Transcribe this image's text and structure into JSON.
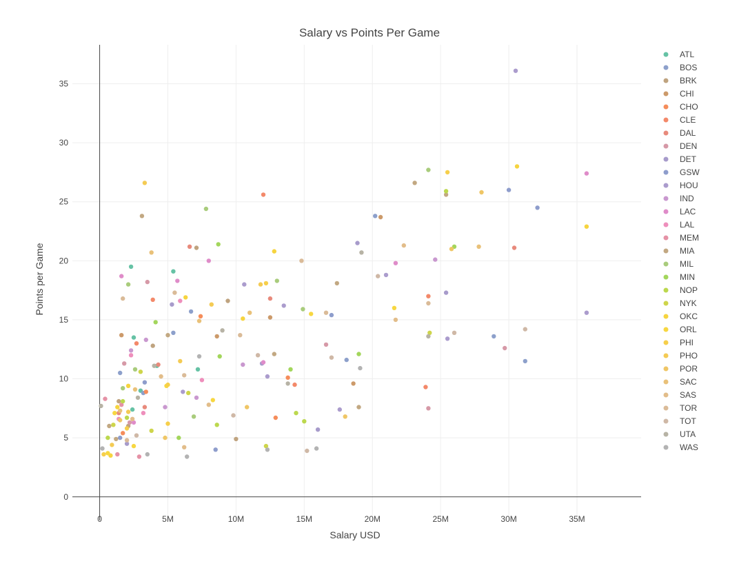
{
  "chart_data": {
    "type": "scatter",
    "title": "Salary vs Points Per Game",
    "xlabel": "Salary USD",
    "ylabel": "Points per Game",
    "xlim": [
      -2000000,
      39700000
    ],
    "ylim": [
      -2,
      38.3
    ],
    "x_ticks": [
      {
        "value": 0,
        "label": "0"
      },
      {
        "value": 5000000,
        "label": "5M"
      },
      {
        "value": 10000000,
        "label": "10M"
      },
      {
        "value": 15000000,
        "label": "15M"
      },
      {
        "value": 20000000,
        "label": "20M"
      },
      {
        "value": 25000000,
        "label": "25M"
      },
      {
        "value": 30000000,
        "label": "30M"
      },
      {
        "value": 35000000,
        "label": "35M"
      }
    ],
    "y_ticks": [
      {
        "value": 0,
        "label": "0"
      },
      {
        "value": 5,
        "label": "5"
      },
      {
        "value": 10,
        "label": "10"
      },
      {
        "value": 15,
        "label": "15"
      },
      {
        "value": 20,
        "label": "20"
      },
      {
        "value": 25,
        "label": "25"
      },
      {
        "value": 30,
        "label": "30"
      },
      {
        "value": 35,
        "label": "35"
      }
    ],
    "grid": true,
    "legend_position": "right",
    "series": [
      {
        "name": "ATL",
        "color": "#66c2a5",
        "points": [
          [
            2300000,
            19.5
          ],
          [
            5400000,
            19.1
          ],
          [
            4200000,
            11.1
          ],
          [
            7200000,
            10.8
          ],
          [
            2500000,
            13.5
          ],
          [
            2400000,
            7.4
          ],
          [
            3000000,
            9.0
          ]
        ]
      },
      {
        "name": "BOS",
        "color": "#8da0cb",
        "points": [
          [
            18100000,
            11.6
          ],
          [
            20200000,
            23.8
          ],
          [
            28900000,
            13.6
          ],
          [
            31200000,
            11.5
          ],
          [
            5400000,
            13.9
          ],
          [
            6700000,
            15.7
          ],
          [
            1500000,
            10.5
          ],
          [
            3200000,
            8.8
          ]
        ]
      },
      {
        "name": "BRK",
        "color": "#bfa37f",
        "points": [
          [
            7100000,
            21.1
          ],
          [
            2100000,
            6.0
          ],
          [
            9400000,
            16.6
          ],
          [
            1400000,
            8.1
          ],
          [
            3900000,
            12.8
          ],
          [
            10000000,
            4.9
          ]
        ]
      },
      {
        "name": "CHI",
        "color": "#cc9a6a",
        "points": [
          [
            20600000,
            23.7
          ],
          [
            18600000,
            9.6
          ],
          [
            12500000,
            15.2
          ],
          [
            1600000,
            13.7
          ],
          [
            8600000,
            13.6
          ]
        ]
      },
      {
        "name": "CHO",
        "color": "#f58d5b",
        "points": [
          [
            13800000,
            10.1
          ],
          [
            12900000,
            6.7
          ],
          [
            1700000,
            5.4
          ],
          [
            7400000,
            15.3
          ],
          [
            3400000,
            8.9
          ]
        ]
      },
      {
        "name": "CLE",
        "color": "#f3896a",
        "points": [
          [
            12000000,
            25.6
          ],
          [
            24100000,
            17.0
          ],
          [
            3900000,
            16.7
          ],
          [
            14300000,
            9.5
          ],
          [
            2700000,
            13.0
          ],
          [
            23900000,
            9.3
          ]
        ]
      },
      {
        "name": "DAL",
        "color": "#e88a7c",
        "points": [
          [
            6600000,
            21.2
          ],
          [
            30400000,
            21.1
          ],
          [
            12500000,
            16.8
          ],
          [
            1400000,
            7.1
          ],
          [
            3300000,
            7.6
          ],
          [
            4300000,
            11.2
          ]
        ]
      },
      {
        "name": "DEN",
        "color": "#d699a7",
        "points": [
          [
            3500000,
            18.2
          ],
          [
            24100000,
            7.5
          ],
          [
            29700000,
            12.6
          ],
          [
            16600000,
            12.9
          ],
          [
            1800000,
            11.3
          ],
          [
            2200000,
            6.3
          ]
        ]
      },
      {
        "name": "DET",
        "color": "#a79bcb",
        "points": [
          [
            18900000,
            21.5
          ],
          [
            25400000,
            17.3
          ],
          [
            11900000,
            11.3
          ],
          [
            16000000,
            5.7
          ],
          [
            5300000,
            16.3
          ],
          [
            2000000,
            4.5
          ]
        ]
      },
      {
        "name": "GSW",
        "color": "#8e9dcc",
        "points": [
          [
            32100000,
            24.5
          ],
          [
            30000000,
            26.0
          ],
          [
            17000000,
            15.4
          ],
          [
            8500000,
            4.0
          ],
          [
            3300000,
            9.7
          ],
          [
            1500000,
            5.0
          ]
        ]
      },
      {
        "name": "HOU",
        "color": "#ab9ccd",
        "points": [
          [
            30500000,
            36.1
          ],
          [
            35700000,
            15.6
          ],
          [
            21000000,
            18.8
          ],
          [
            25500000,
            13.4
          ],
          [
            13500000,
            16.2
          ],
          [
            10600000,
            18.0
          ],
          [
            12300000,
            10.2
          ],
          [
            6100000,
            8.9
          ],
          [
            17600000,
            7.4
          ]
        ]
      },
      {
        "name": "IND",
        "color": "#c998cf",
        "points": [
          [
            24600000,
            20.1
          ],
          [
            10500000,
            11.2
          ],
          [
            3400000,
            13.3
          ],
          [
            2300000,
            12.4
          ],
          [
            7100000,
            8.4
          ],
          [
            4800000,
            7.6
          ]
        ]
      },
      {
        "name": "LAC",
        "color": "#df8cc9",
        "points": [
          [
            35700000,
            27.4
          ],
          [
            21700000,
            19.8
          ],
          [
            8000000,
            20.0
          ],
          [
            5700000,
            18.3
          ],
          [
            12000000,
            11.4
          ],
          [
            1600000,
            18.7
          ],
          [
            2500000,
            6.3
          ]
        ]
      },
      {
        "name": "LAL",
        "color": "#ee8fbc",
        "points": [
          [
            5900000,
            16.6
          ],
          [
            2300000,
            12.0
          ],
          [
            7500000,
            9.9
          ],
          [
            3200000,
            7.1
          ],
          [
            1400000,
            6.6
          ]
        ]
      },
      {
        "name": "MEM",
        "color": "#e592a6",
        "points": [
          [
            400000,
            8.3
          ],
          [
            1300000,
            3.6
          ],
          [
            2900000,
            3.4
          ],
          [
            1600000,
            7.8
          ]
        ]
      },
      {
        "name": "MIA",
        "color": "#c2a882",
        "points": [
          [
            23100000,
            26.6
          ],
          [
            25400000,
            25.6
          ],
          [
            3100000,
            23.8
          ],
          [
            12800000,
            12.1
          ],
          [
            17400000,
            18.1
          ],
          [
            19000000,
            7.6
          ],
          [
            5000000,
            13.7
          ],
          [
            700000,
            6.0
          ],
          [
            1200000,
            4.9
          ]
        ]
      },
      {
        "name": "MIL",
        "color": "#a9cc7c",
        "points": [
          [
            24100000,
            27.7
          ],
          [
            7800000,
            24.4
          ],
          [
            2100000,
            18.0
          ],
          [
            13000000,
            18.3
          ],
          [
            14900000,
            15.9
          ],
          [
            6900000,
            6.8
          ],
          [
            1700000,
            9.2
          ],
          [
            2600000,
            10.8
          ]
        ]
      },
      {
        "name": "MIN",
        "color": "#a3d65c",
        "points": [
          [
            26000000,
            21.2
          ],
          [
            8700000,
            21.4
          ],
          [
            19000000,
            12.1
          ],
          [
            14000000,
            10.8
          ],
          [
            4100000,
            14.8
          ],
          [
            8800000,
            11.9
          ],
          [
            5800000,
            5.0
          ]
        ]
      },
      {
        "name": "NOP",
        "color": "#bcd84e",
        "points": [
          [
            25400000,
            25.9
          ],
          [
            8600000,
            6.1
          ],
          [
            14400000,
            7.1
          ],
          [
            15000000,
            6.4
          ],
          [
            1700000,
            8.1
          ],
          [
            600000,
            5.0
          ],
          [
            2000000,
            6.7
          ]
        ]
      },
      {
        "name": "NYK",
        "color": "#ced54b",
        "points": [
          [
            24200000,
            13.9
          ],
          [
            12200000,
            4.3
          ],
          [
            6500000,
            8.8
          ],
          [
            3000000,
            10.6
          ],
          [
            1000000,
            6.1
          ],
          [
            3800000,
            5.6
          ]
        ]
      },
      {
        "name": "OKC",
        "color": "#f6d43f",
        "points": [
          [
            30600000,
            28.0
          ],
          [
            35700000,
            22.9
          ],
          [
            12800000,
            20.8
          ],
          [
            10500000,
            15.1
          ],
          [
            6300000,
            16.9
          ],
          [
            2100000,
            9.4
          ],
          [
            1300000,
            7.6
          ],
          [
            800000,
            3.5
          ]
        ]
      },
      {
        "name": "ORL",
        "color": "#f7d741",
        "points": [
          [
            15500000,
            15.5
          ],
          [
            21600000,
            16.0
          ],
          [
            8300000,
            8.2
          ],
          [
            2500000,
            4.3
          ],
          [
            4900000,
            9.4
          ],
          [
            1100000,
            7.1
          ],
          [
            600000,
            3.7
          ]
        ]
      },
      {
        "name": "PHI",
        "color": "#f6cf4b",
        "points": [
          [
            25500000,
            27.5
          ],
          [
            12200000,
            18.1
          ],
          [
            5000000,
            9.5
          ],
          [
            5000000,
            6.2
          ],
          [
            2000000,
            5.8
          ],
          [
            300000,
            3.6
          ]
        ]
      },
      {
        "name": "PHO",
        "color": "#f4cb54",
        "points": [
          [
            3300000,
            26.6
          ],
          [
            11800000,
            18.0
          ],
          [
            8200000,
            16.3
          ],
          [
            5900000,
            11.5
          ],
          [
            2100000,
            7.2
          ],
          [
            900000,
            4.4
          ]
        ]
      },
      {
        "name": "POR",
        "color": "#efc666",
        "points": [
          [
            28000000,
            25.8
          ],
          [
            25800000,
            21.0
          ],
          [
            10800000,
            7.6
          ],
          [
            18000000,
            6.8
          ],
          [
            4800000,
            5.0
          ],
          [
            1500000,
            6.5
          ]
        ]
      },
      {
        "name": "SAC",
        "color": "#e9c179",
        "points": [
          [
            27800000,
            21.2
          ],
          [
            3800000,
            20.7
          ],
          [
            7300000,
            14.9
          ],
          [
            11000000,
            15.6
          ],
          [
            1500000,
            7.3
          ],
          [
            2600000,
            9.1
          ]
        ]
      },
      {
        "name": "SAS",
        "color": "#e2bd8a",
        "points": [
          [
            22300000,
            21.3
          ],
          [
            21700000,
            15.0
          ],
          [
            4500000,
            10.2
          ],
          [
            8000000,
            7.8
          ],
          [
            2400000,
            6.6
          ],
          [
            6200000,
            4.2
          ]
        ]
      },
      {
        "name": "TOR",
        "color": "#dabb98",
        "points": [
          [
            24100000,
            16.4
          ],
          [
            14800000,
            20.0
          ],
          [
            16600000,
            15.6
          ],
          [
            10300000,
            13.7
          ],
          [
            5500000,
            17.3
          ],
          [
            1700000,
            16.8
          ],
          [
            6200000,
            10.3
          ],
          [
            2000000,
            4.8
          ]
        ]
      },
      {
        "name": "TOT",
        "color": "#cfb8a6",
        "points": [
          [
            26000000,
            13.9
          ],
          [
            31200000,
            14.2
          ],
          [
            20400000,
            18.7
          ],
          [
            17000000,
            11.8
          ],
          [
            11600000,
            12.0
          ],
          [
            9800000,
            6.9
          ],
          [
            15200000,
            3.9
          ],
          [
            2700000,
            5.2
          ]
        ]
      },
      {
        "name": "UTA",
        "color": "#b7b3a5",
        "points": [
          [
            24100000,
            13.6
          ],
          [
            19200000,
            20.7
          ],
          [
            9000000,
            14.1
          ],
          [
            13800000,
            9.6
          ],
          [
            4000000,
            11.1
          ],
          [
            2800000,
            8.4
          ],
          [
            100000,
            7.7
          ]
        ]
      },
      {
        "name": "WAS",
        "color": "#b3b3b3",
        "points": [
          [
            15900000,
            4.1
          ],
          [
            7300000,
            11.9
          ],
          [
            12300000,
            4.0
          ],
          [
            19100000,
            10.9
          ],
          [
            3500000,
            3.6
          ],
          [
            6400000,
            3.4
          ],
          [
            200000,
            4.1
          ]
        ]
      }
    ]
  }
}
